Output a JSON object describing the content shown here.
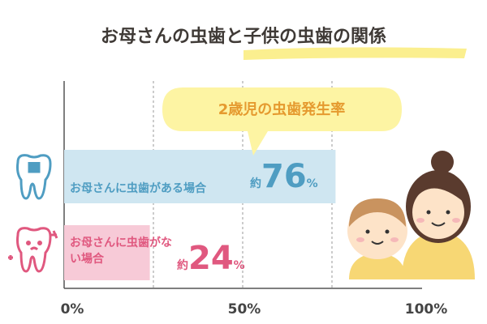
{
  "chart_data": {
    "type": "bar",
    "orientation": "horizontal",
    "title": "お母さんの虫歯と子供の虫歯の関係",
    "annotation": "2歳児の虫歯発生率",
    "categories": [
      "お母さんに虫歯がある場合",
      "お母さんに虫歯がない場合"
    ],
    "values": [
      76,
      24
    ],
    "value_labels": [
      "約76%",
      "約24%"
    ],
    "colors": [
      "#cfe6f1",
      "#f7cad7"
    ],
    "label_colors": [
      "#4f9dc2",
      "#e0587f"
    ],
    "xlim": [
      0,
      100
    ],
    "xticks": [
      {
        "value": 0,
        "label": "0%"
      },
      {
        "value": 50,
        "label": "50%"
      },
      {
        "value": 100,
        "label": "100%"
      }
    ],
    "grid_lines": [
      25,
      50,
      75
    ]
  }
}
